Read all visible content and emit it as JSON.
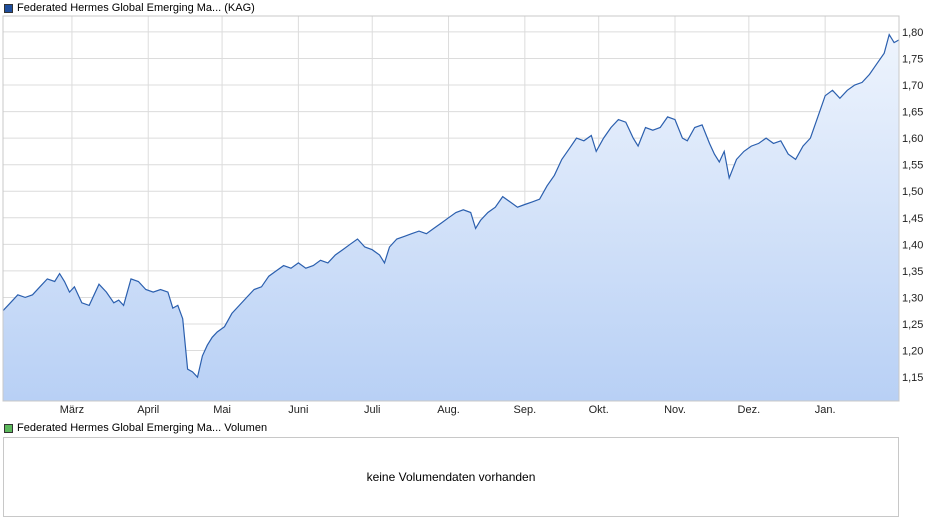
{
  "legend": {
    "price_label": "Federated Hermes Global Emerging Ma... (KAG)",
    "price_color": "#1f4e9c",
    "volume_label": "Federated Hermes Global Emerging Ma... Volumen",
    "volume_color": "#5cb85c"
  },
  "volume": {
    "empty_text": "keine Volumendaten vorhanden"
  },
  "chart_data": {
    "type": "area",
    "line_color": "#2b5fae",
    "fill_top_color": "#eef4fd",
    "fill_bottom_color": "#b8d0f5",
    "grid": true,
    "ylim": [
      1.105,
      1.83
    ],
    "y_ticks": [
      1.15,
      1.2,
      1.25,
      1.3,
      1.35,
      1.4,
      1.45,
      1.5,
      1.55,
      1.6,
      1.65,
      1.7,
      1.75,
      1.8
    ],
    "y_tick_labels": [
      "1,15",
      "1,20",
      "1,25",
      "1,30",
      "1,35",
      "1,40",
      "1,45",
      "1,50",
      "1,55",
      "1,60",
      "1,65",
      "1,70",
      "1,75",
      "1,80"
    ],
    "x_range": [
      "2025-02-01",
      "2026-01-31"
    ],
    "months": [
      {
        "label": "März",
        "date": "2025-03-01"
      },
      {
        "label": "April",
        "date": "2025-04-01"
      },
      {
        "label": "Mai",
        "date": "2025-05-01"
      },
      {
        "label": "Juni",
        "date": "2025-06-01"
      },
      {
        "label": "Juli",
        "date": "2025-07-01"
      },
      {
        "label": "Aug.",
        "date": "2025-08-01"
      },
      {
        "label": "Sep.",
        "date": "2025-09-01"
      },
      {
        "label": "Okt.",
        "date": "2025-10-01"
      },
      {
        "label": "Nov.",
        "date": "2025-11-01"
      },
      {
        "label": "Dez.",
        "date": "2025-12-01"
      },
      {
        "label": "Jan.",
        "date": "2026-01-01"
      }
    ],
    "series": [
      {
        "points": [
          [
            "2025-02-01",
            1.275
          ],
          [
            "2025-02-04",
            1.29
          ],
          [
            "2025-02-07",
            1.305
          ],
          [
            "2025-02-10",
            1.3
          ],
          [
            "2025-02-13",
            1.305
          ],
          [
            "2025-02-16",
            1.32
          ],
          [
            "2025-02-19",
            1.335
          ],
          [
            "2025-02-22",
            1.33
          ],
          [
            "2025-02-24",
            1.345
          ],
          [
            "2025-02-26",
            1.33
          ],
          [
            "2025-02-28",
            1.31
          ],
          [
            "2025-03-02",
            1.32
          ],
          [
            "2025-03-05",
            1.29
          ],
          [
            "2025-03-08",
            1.285
          ],
          [
            "2025-03-12",
            1.325
          ],
          [
            "2025-03-15",
            1.31
          ],
          [
            "2025-03-18",
            1.29
          ],
          [
            "2025-03-20",
            1.295
          ],
          [
            "2025-03-22",
            1.285
          ],
          [
            "2025-03-25",
            1.335
          ],
          [
            "2025-03-28",
            1.33
          ],
          [
            "2025-03-31",
            1.315
          ],
          [
            "2025-04-03",
            1.31
          ],
          [
            "2025-04-06",
            1.315
          ],
          [
            "2025-04-09",
            1.31
          ],
          [
            "2025-04-11",
            1.28
          ],
          [
            "2025-04-13",
            1.285
          ],
          [
            "2025-04-15",
            1.26
          ],
          [
            "2025-04-17",
            1.165
          ],
          [
            "2025-04-19",
            1.16
          ],
          [
            "2025-04-21",
            1.15
          ],
          [
            "2025-04-23",
            1.19
          ],
          [
            "2025-04-25",
            1.21
          ],
          [
            "2025-04-27",
            1.225
          ],
          [
            "2025-04-29",
            1.235
          ],
          [
            "2025-05-02",
            1.245
          ],
          [
            "2025-05-05",
            1.27
          ],
          [
            "2025-05-08",
            1.285
          ],
          [
            "2025-05-11",
            1.3
          ],
          [
            "2025-05-14",
            1.315
          ],
          [
            "2025-05-17",
            1.32
          ],
          [
            "2025-05-20",
            1.34
          ],
          [
            "2025-05-23",
            1.35
          ],
          [
            "2025-05-26",
            1.36
          ],
          [
            "2025-05-29",
            1.355
          ],
          [
            "2025-06-01",
            1.365
          ],
          [
            "2025-06-04",
            1.355
          ],
          [
            "2025-06-07",
            1.36
          ],
          [
            "2025-06-10",
            1.37
          ],
          [
            "2025-06-13",
            1.365
          ],
          [
            "2025-06-16",
            1.38
          ],
          [
            "2025-06-19",
            1.39
          ],
          [
            "2025-06-22",
            1.4
          ],
          [
            "2025-06-25",
            1.41
          ],
          [
            "2025-06-28",
            1.395
          ],
          [
            "2025-07-01",
            1.39
          ],
          [
            "2025-07-04",
            1.38
          ],
          [
            "2025-07-06",
            1.365
          ],
          [
            "2025-07-08",
            1.395
          ],
          [
            "2025-07-11",
            1.41
          ],
          [
            "2025-07-14",
            1.415
          ],
          [
            "2025-07-17",
            1.42
          ],
          [
            "2025-07-20",
            1.425
          ],
          [
            "2025-07-23",
            1.42
          ],
          [
            "2025-07-26",
            1.43
          ],
          [
            "2025-07-29",
            1.44
          ],
          [
            "2025-08-01",
            1.45
          ],
          [
            "2025-08-04",
            1.46
          ],
          [
            "2025-08-07",
            1.465
          ],
          [
            "2025-08-10",
            1.46
          ],
          [
            "2025-08-12",
            1.43
          ],
          [
            "2025-08-14",
            1.445
          ],
          [
            "2025-08-17",
            1.46
          ],
          [
            "2025-08-20",
            1.47
          ],
          [
            "2025-08-23",
            1.49
          ],
          [
            "2025-08-26",
            1.48
          ],
          [
            "2025-08-29",
            1.47
          ],
          [
            "2025-09-01",
            1.475
          ],
          [
            "2025-09-04",
            1.48
          ],
          [
            "2025-09-07",
            1.485
          ],
          [
            "2025-09-10",
            1.51
          ],
          [
            "2025-09-13",
            1.53
          ],
          [
            "2025-09-16",
            1.56
          ],
          [
            "2025-09-19",
            1.58
          ],
          [
            "2025-09-22",
            1.6
          ],
          [
            "2025-09-25",
            1.595
          ],
          [
            "2025-09-28",
            1.605
          ],
          [
            "2025-09-30",
            1.575
          ],
          [
            "2025-10-03",
            1.6
          ],
          [
            "2025-10-06",
            1.62
          ],
          [
            "2025-10-09",
            1.635
          ],
          [
            "2025-10-12",
            1.63
          ],
          [
            "2025-10-15",
            1.6
          ],
          [
            "2025-10-17",
            1.585
          ],
          [
            "2025-10-20",
            1.62
          ],
          [
            "2025-10-23",
            1.615
          ],
          [
            "2025-10-26",
            1.62
          ],
          [
            "2025-10-29",
            1.64
          ],
          [
            "2025-11-01",
            1.635
          ],
          [
            "2025-11-04",
            1.6
          ],
          [
            "2025-11-06",
            1.595
          ],
          [
            "2025-11-09",
            1.62
          ],
          [
            "2025-11-12",
            1.625
          ],
          [
            "2025-11-15",
            1.59
          ],
          [
            "2025-11-17",
            1.57
          ],
          [
            "2025-11-19",
            1.555
          ],
          [
            "2025-11-21",
            1.575
          ],
          [
            "2025-11-23",
            1.525
          ],
          [
            "2025-11-26",
            1.56
          ],
          [
            "2025-11-29",
            1.575
          ],
          [
            "2025-12-02",
            1.585
          ],
          [
            "2025-12-05",
            1.59
          ],
          [
            "2025-12-08",
            1.6
          ],
          [
            "2025-12-11",
            1.59
          ],
          [
            "2025-12-14",
            1.595
          ],
          [
            "2025-12-17",
            1.57
          ],
          [
            "2025-12-20",
            1.56
          ],
          [
            "2025-12-23",
            1.585
          ],
          [
            "2025-12-26",
            1.6
          ],
          [
            "2025-12-29",
            1.64
          ],
          [
            "2026-01-01",
            1.68
          ],
          [
            "2026-01-04",
            1.69
          ],
          [
            "2026-01-07",
            1.675
          ],
          [
            "2026-01-10",
            1.69
          ],
          [
            "2026-01-13",
            1.7
          ],
          [
            "2026-01-16",
            1.705
          ],
          [
            "2026-01-19",
            1.72
          ],
          [
            "2026-01-22",
            1.74
          ],
          [
            "2026-01-25",
            1.76
          ],
          [
            "2026-01-27",
            1.795
          ],
          [
            "2026-01-29",
            1.78
          ],
          [
            "2026-01-31",
            1.785
          ]
        ]
      }
    ]
  }
}
